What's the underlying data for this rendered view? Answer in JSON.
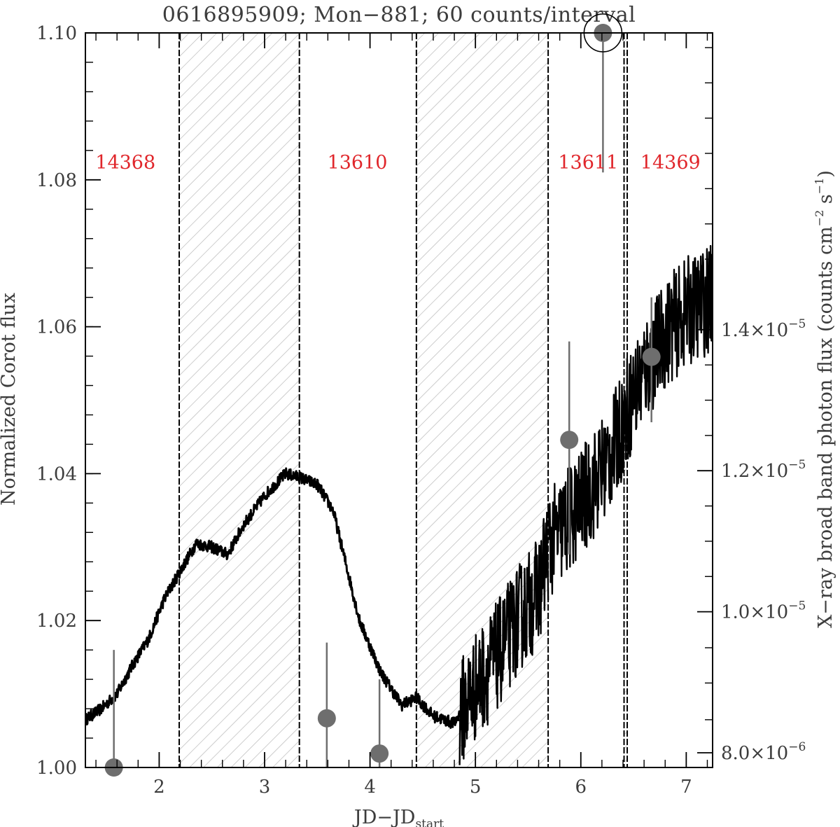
{
  "chart_data": {
    "type": "line",
    "title": "0616895909; Mon−881; 60 counts/interval",
    "xlabel": "JD−JD",
    "xlabel_subscript": "start",
    "ylabel_left": "Normalized Corot flux",
    "ylabel_right": "X−ray broad band photon flux (counts cm",
    "ylabel_right_parts": [
      "−2",
      " s",
      "−1",
      ")"
    ],
    "xlim": [
      1.3,
      7.25
    ],
    "ylim": [
      1.0,
      1.1
    ],
    "x_ticks": [
      2,
      3,
      4,
      5,
      6,
      7
    ],
    "y_ticks": [
      1.0,
      1.02,
      1.04,
      1.06,
      1.08,
      1.1
    ],
    "y_tick_labels": [
      "1.00",
      "1.02",
      "1.04",
      "1.06",
      "1.08",
      "1.10"
    ],
    "y2_ticks": [
      {
        "mantissa": "8.0",
        "exp": "−6",
        "y": 1.002
      },
      {
        "mantissa": "1.0",
        "exp": "−5",
        "y": 1.0212
      },
      {
        "mantissa": "1.2",
        "exp": "−5",
        "y": 1.0404
      },
      {
        "mantissa": "1.4",
        "exp": "−5",
        "y": 1.0596
      }
    ],
    "hatched_regions": [
      [
        2.19,
        3.33
      ],
      [
        4.44,
        5.69
      ],
      [
        6.41,
        6.44
      ]
    ],
    "boundaries": [
      2.19,
      3.33,
      4.44,
      5.69,
      6.41,
      6.44
    ],
    "observation_labels": [
      {
        "text": "14368",
        "x": 1.68,
        "y": 1.0815
      },
      {
        "text": "13610",
        "x": 3.88,
        "y": 1.0815
      },
      {
        "text": "13611",
        "x": 6.07,
        "y": 1.0815
      },
      {
        "text": "14369",
        "x": 6.85,
        "y": 1.0815
      }
    ],
    "corot_light_curve_knots": [
      [
        1.3,
        1.0065
      ],
      [
        1.45,
        1.008
      ],
      [
        1.6,
        1.01
      ],
      [
        1.75,
        1.014
      ],
      [
        1.9,
        1.0175
      ],
      [
        2.05,
        1.023
      ],
      [
        2.19,
        1.0265
      ],
      [
        2.35,
        1.0305
      ],
      [
        2.5,
        1.03
      ],
      [
        2.65,
        1.029
      ],
      [
        2.8,
        1.033
      ],
      [
        3.0,
        1.037
      ],
      [
        3.2,
        1.04
      ],
      [
        3.33,
        1.0395
      ],
      [
        3.5,
        1.0385
      ],
      [
        3.65,
        1.035
      ],
      [
        3.75,
        1.029
      ],
      [
        3.9,
        1.02
      ],
      [
        4.1,
        1.013
      ],
      [
        4.3,
        1.0085
      ],
      [
        4.44,
        1.0095
      ],
      [
        4.6,
        1.007
      ],
      [
        4.8,
        1.006
      ],
      [
        5.0,
        1.011
      ],
      [
        5.2,
        1.015
      ],
      [
        5.4,
        1.02
      ],
      [
        5.6,
        1.024
      ],
      [
        5.69,
        1.03
      ],
      [
        5.9,
        1.034
      ],
      [
        6.1,
        1.038
      ],
      [
        6.3,
        1.043
      ],
      [
        6.45,
        1.049
      ],
      [
        6.6,
        1.054
      ],
      [
        6.8,
        1.059
      ],
      [
        7.0,
        1.062
      ],
      [
        7.25,
        1.064
      ]
    ],
    "corot_noise_segments": [
      {
        "x": [
          1.3,
          4.85
        ],
        "amplitude": 0.0008
      },
      {
        "x": [
          4.85,
          5.69
        ],
        "amplitude": 0.0075
      },
      {
        "x": [
          5.69,
          7.25
        ],
        "amplitude": 0.0075
      }
    ],
    "xray_points": [
      {
        "x": 1.57,
        "y": 1.0,
        "err_low": 1.0,
        "err_high": 1.016
      },
      {
        "x": 3.59,
        "y": 1.0067,
        "err_low": 1.0,
        "err_high": 1.017
      },
      {
        "x": 4.09,
        "y": 1.0019,
        "err_low": 1.0,
        "err_high": 1.012
      },
      {
        "x": 5.89,
        "y": 1.0446,
        "err_low": 1.029,
        "err_high": 1.058
      },
      {
        "x": 6.21,
        "y": 1.1,
        "err_low": 1.081,
        "err_high": 1.1
      },
      {
        "x": 6.67,
        "y": 1.0559,
        "err_low": 1.047,
        "err_high": 1.064
      }
    ],
    "flare_circle": {
      "x": 6.21,
      "y": 1.1
    },
    "colors": {
      "curve": "#000000",
      "xray": "#6e6e6e",
      "hatch": "#b9b9b9",
      "labels": "#e0262b",
      "text": "#3c3c3c"
    }
  }
}
